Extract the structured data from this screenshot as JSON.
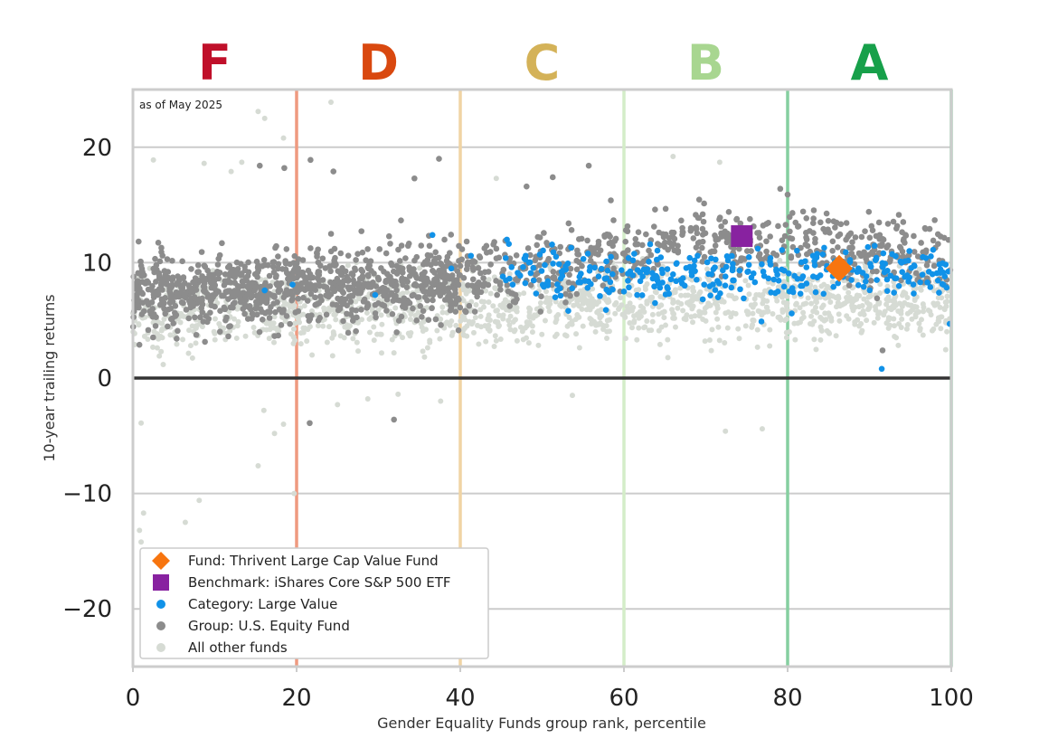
{
  "chart_data": {
    "type": "scatter",
    "annotation": "as of May 2025",
    "xlabel": "Gender Equality Funds group rank, percentile",
    "ylabel": "10-year trailing returns",
    "xlim": [
      0,
      100
    ],
    "ylim": [
      -25,
      25
    ],
    "xticks": [
      0,
      20,
      40,
      60,
      80,
      100
    ],
    "yticks": [
      -20,
      -10,
      0,
      10,
      20
    ],
    "xtick_labels": [
      "0",
      "20",
      "40",
      "60",
      "80",
      "100"
    ],
    "ytick_labels": [
      "−20",
      "−10",
      "0",
      "10",
      "20"
    ],
    "grid": "horizontal",
    "zero_line": 0,
    "grades": [
      {
        "label": "F",
        "start": 0,
        "end": 20,
        "color": "#c0102a",
        "line_color": "#ef9a80"
      },
      {
        "label": "D",
        "start": 20,
        "end": 40,
        "color": "#d9480f",
        "line_color": "#f0d4a4"
      },
      {
        "label": "C",
        "start": 40,
        "end": 60,
        "color": "#d4b258",
        "line_color": "#d4edc8"
      },
      {
        "label": "B",
        "start": 60,
        "end": 80,
        "color": "#a8d690",
        "line_color": "#86cfa0"
      },
      {
        "label": "A",
        "start": 80,
        "end": 100,
        "color": "#17a04a",
        "line_color": "#86cfa0"
      }
    ],
    "boundary_lines": [
      20,
      40,
      60,
      80,
      100
    ],
    "legend_position": "lower-left",
    "series": [
      {
        "name": "Fund: Thrivent Large Cap Value Fund",
        "marker": "diamond",
        "color": "#f7750f",
        "points": [
          [
            86.3,
            9.5
          ]
        ]
      },
      {
        "name": "Benchmark: iShares Core S&P 500 ETF",
        "marker": "square",
        "color": "#8822a0",
        "points": [
          [
            74.4,
            12.3
          ]
        ]
      },
      {
        "name": "Category: Large Value",
        "marker": "circle",
        "color": "#1192e8",
        "points": [
          [
            16.1,
            7.6
          ],
          [
            19.5,
            8.1
          ],
          [
            29.6,
            7.2
          ],
          [
            36.6,
            12.4
          ],
          [
            38.9,
            9.5
          ],
          [
            41.3,
            10.6
          ],
          [
            45.2,
            8.8
          ],
          [
            45.7,
            12.0
          ],
          [
            46.4,
            8.1
          ],
          [
            48.6,
            9.1
          ],
          [
            50.7,
            8.4
          ],
          [
            51.6,
            7.0
          ],
          [
            52.9,
            9.4
          ],
          [
            54.5,
            8.3
          ],
          [
            55.8,
            9.3
          ],
          [
            56.9,
            8.8
          ],
          [
            57.8,
            5.9
          ],
          [
            58.6,
            9.0
          ],
          [
            60.0,
            7.5
          ],
          [
            61.1,
            10.2
          ],
          [
            62.0,
            8.4
          ],
          [
            63.2,
            11.6
          ],
          [
            63.8,
            6.5
          ],
          [
            64.7,
            9.1
          ],
          [
            65.5,
            7.3
          ],
          [
            66.4,
            9.9
          ],
          [
            67.1,
            8.2
          ],
          [
            68.2,
            9.5
          ],
          [
            69.0,
            10.6
          ],
          [
            69.8,
            8.1
          ],
          [
            70.7,
            9.0
          ],
          [
            71.5,
            7.0
          ],
          [
            72.4,
            8.8
          ],
          [
            73.3,
            9.9
          ],
          [
            74.2,
            7.7
          ],
          [
            75.1,
            9.2
          ],
          [
            76.0,
            8.3
          ],
          [
            76.8,
            4.9
          ],
          [
            77.9,
            10.4
          ],
          [
            78.8,
            7.5
          ],
          [
            79.6,
            9.3
          ],
          [
            80.5,
            5.6
          ],
          [
            81.2,
            8.6
          ],
          [
            82.3,
            9.6
          ],
          [
            83.1,
            10.6
          ],
          [
            84.0,
            8.9
          ],
          [
            84.8,
            9.7
          ],
          [
            85.6,
            7.9
          ],
          [
            87.1,
            10.9
          ],
          [
            87.8,
            8.5
          ],
          [
            88.5,
            9.2
          ],
          [
            89.3,
            7.9
          ],
          [
            90.1,
            9.9
          ],
          [
            90.9,
            8.5
          ],
          [
            91.5,
            0.8
          ],
          [
            92.2,
            9.3
          ],
          [
            93.0,
            7.4
          ],
          [
            93.8,
            10.1
          ],
          [
            94.6,
            8.9
          ],
          [
            95.5,
            9.7
          ],
          [
            96.2,
            8.3
          ],
          [
            96.9,
            10.4
          ],
          [
            97.7,
            9.0
          ],
          [
            98.5,
            7.4
          ],
          [
            99.2,
            8.8
          ],
          [
            99.8,
            4.7
          ]
        ]
      },
      {
        "name": "Group: U.S. Equity Fund",
        "marker": "circle",
        "color": "#8c8c8c",
        "points": [
          [
            15.5,
            18.4
          ],
          [
            18.5,
            18.2
          ],
          [
            21.7,
            18.9
          ],
          [
            24.5,
            17.9
          ],
          [
            31.9,
            -3.6
          ],
          [
            21.6,
            -3.9
          ],
          [
            34.4,
            17.3
          ],
          [
            37.4,
            19.0
          ],
          [
            48.1,
            16.6
          ],
          [
            51.3,
            17.4
          ],
          [
            55.7,
            18.4
          ],
          [
            58.4,
            15.4
          ],
          [
            63.8,
            14.6
          ],
          [
            79.1,
            16.4
          ],
          [
            80.0,
            15.9
          ],
          [
            91.6,
            2.4
          ]
        ]
      },
      {
        "name": "All other funds",
        "marker": "circle",
        "color": "#d6dbd4",
        "points": [
          [
            1.0,
            -3.9
          ],
          [
            0.8,
            -13.2
          ],
          [
            1.0,
            -14.2
          ],
          [
            1.3,
            -11.7
          ],
          [
            6.4,
            -12.5
          ],
          [
            8.1,
            -10.6
          ],
          [
            15.3,
            -7.6
          ],
          [
            16.0,
            -2.8
          ],
          [
            17.3,
            -4.8
          ],
          [
            18.4,
            -4.0
          ],
          [
            19.7,
            -10.0
          ],
          [
            25.0,
            -2.3
          ],
          [
            28.7,
            -1.8
          ],
          [
            32.4,
            -1.4
          ],
          [
            37.6,
            -2.0
          ],
          [
            53.7,
            -1.5
          ],
          [
            72.4,
            -4.6
          ],
          [
            76.9,
            -4.4
          ],
          [
            15.3,
            23.1
          ],
          [
            16.1,
            22.5
          ],
          [
            24.2,
            23.9
          ],
          [
            18.4,
            20.8
          ],
          [
            2.5,
            18.9
          ],
          [
            12.0,
            17.9
          ],
          [
            13.3,
            18.7
          ],
          [
            66.0,
            19.2
          ],
          [
            71.7,
            18.7
          ],
          [
            8.7,
            18.6
          ],
          [
            44.4,
            17.3
          ]
        ]
      }
    ]
  }
}
